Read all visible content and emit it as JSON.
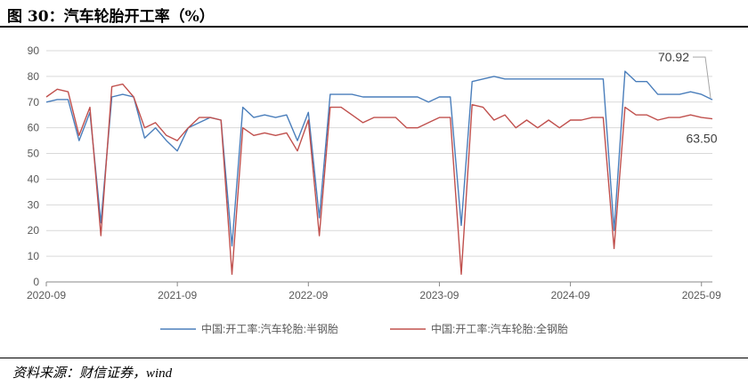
{
  "header": {
    "title": "图 30：汽车轮胎开工率（%）"
  },
  "footer": {
    "source": "资料来源：财信证券，wind"
  },
  "chart_data": {
    "type": "line",
    "title": "",
    "xlabel": "",
    "ylabel": "",
    "ylim": [
      0,
      90
    ],
    "yticks": [
      0,
      10,
      20,
      30,
      40,
      50,
      60,
      70,
      80,
      90
    ],
    "xticks": [
      "2020-09",
      "2021-09",
      "2022-09",
      "2023-09",
      "2024-09",
      "2025-09"
    ],
    "xlim": [
      "2020-09",
      "2025-10"
    ],
    "grid": "horizontal",
    "legend": "bottom",
    "x": [
      "2020-09",
      "2020-10",
      "2020-11",
      "2020-12",
      "2021-01",
      "2021-02",
      "2021-03",
      "2021-04",
      "2021-05",
      "2021-06",
      "2021-07",
      "2021-08",
      "2021-09",
      "2021-10",
      "2021-11",
      "2021-12",
      "2022-01",
      "2022-02",
      "2022-03",
      "2022-04",
      "2022-05",
      "2022-06",
      "2022-07",
      "2022-08",
      "2022-09",
      "2022-10",
      "2022-11",
      "2022-12",
      "2023-01",
      "2023-02",
      "2023-03",
      "2023-04",
      "2023-05",
      "2023-06",
      "2023-07",
      "2023-08",
      "2023-09",
      "2023-10",
      "2023-11",
      "2023-12",
      "2024-01",
      "2024-02",
      "2024-03",
      "2024-04",
      "2024-05",
      "2024-06",
      "2024-07",
      "2024-08",
      "2024-09",
      "2024-10",
      "2024-11",
      "2024-12",
      "2025-01",
      "2025-02",
      "2025-03",
      "2025-04",
      "2025-05",
      "2025-06",
      "2025-07",
      "2025-08",
      "2025-09",
      "2025-10"
    ],
    "series": [
      {
        "name": "中国:开工率:汽车轮胎:半钢胎",
        "color": "#4a7ebb",
        "values": [
          70,
          71,
          71,
          55,
          66,
          23,
          72,
          73,
          72,
          56,
          60,
          55,
          51,
          60,
          62,
          64,
          63,
          14,
          68,
          64,
          65,
          64,
          65,
          55,
          66,
          25,
          73,
          73,
          73,
          72,
          72,
          72,
          72,
          72,
          72,
          70,
          72,
          72,
          22,
          78,
          79,
          80,
          79,
          79,
          79,
          79,
          79,
          79,
          79,
          79,
          79,
          79,
          20,
          82,
          78,
          78,
          73,
          73,
          73,
          74,
          73,
          70.92
        ]
      },
      {
        "name": "中国:开工率:汽车轮胎:全钢胎",
        "color": "#c0504d",
        "values": [
          72,
          75,
          74,
          57,
          68,
          18,
          76,
          77,
          72,
          60,
          62,
          57,
          55,
          60,
          64,
          64,
          63,
          3,
          60,
          57,
          58,
          57,
          58,
          51,
          63,
          18,
          68,
          68,
          65,
          62,
          64,
          64,
          64,
          60,
          60,
          62,
          64,
          64,
          3,
          69,
          68,
          63,
          65,
          60,
          63,
          60,
          63,
          60,
          63,
          63,
          64,
          64,
          13,
          68,
          65,
          65,
          63,
          64,
          64,
          65,
          64,
          63.5
        ]
      }
    ],
    "annotations": [
      {
        "text": "70.92",
        "series": 0
      },
      {
        "text": "63.50",
        "series": 1
      }
    ]
  }
}
